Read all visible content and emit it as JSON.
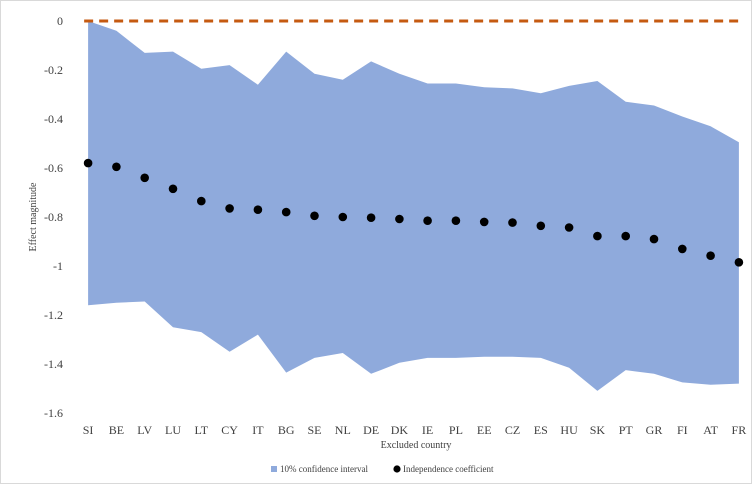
{
  "chart_data": {
    "type": "area",
    "xlabel": "Excluded country",
    "ylabel": "Effect magnitude",
    "ylim": [
      -1.6,
      0
    ],
    "yticks": [
      0,
      -0.2,
      -0.4,
      -0.6,
      -0.8,
      -1,
      -1.2,
      -1.4,
      -1.6
    ],
    "ytick_labels": [
      "0",
      "-0.2",
      "-0.4",
      "-0.6",
      "-0.8",
      "-1",
      "-1.2",
      "-1.4",
      "-1.6"
    ],
    "categories": [
      "SI",
      "BE",
      "LV",
      "LU",
      "LT",
      "CY",
      "IT",
      "BG",
      "SE",
      "NL",
      "DE",
      "DK",
      "IE",
      "PL",
      "EE",
      "CZ",
      "ES",
      "HU",
      "SK",
      "PT",
      "GR",
      "FI",
      "AT",
      "FR"
    ],
    "series": [
      {
        "name": "10% confidence interval",
        "kind": "band",
        "color": "#8faadc",
        "upper": [
          0.0,
          -0.04,
          -0.13,
          -0.125,
          -0.195,
          -0.18,
          -0.26,
          -0.125,
          -0.215,
          -0.24,
          -0.165,
          -0.215,
          -0.255,
          -0.255,
          -0.27,
          -0.275,
          -0.295,
          -0.265,
          -0.245,
          -0.33,
          -0.345,
          -0.39,
          -0.43,
          -0.495
        ],
        "lower": [
          -1.16,
          -1.15,
          -1.145,
          -1.25,
          -1.27,
          -1.35,
          -1.28,
          -1.435,
          -1.375,
          -1.355,
          -1.44,
          -1.395,
          -1.375,
          -1.375,
          -1.37,
          -1.37,
          -1.375,
          -1.415,
          -1.51,
          -1.425,
          -1.44,
          -1.475,
          -1.485,
          -1.48
        ]
      },
      {
        "name": "Independence coefficient",
        "kind": "scatter",
        "color": "#000000",
        "values": [
          -0.58,
          -0.595,
          -0.64,
          -0.685,
          -0.735,
          -0.765,
          -0.77,
          -0.78,
          -0.795,
          -0.8,
          -0.803,
          -0.808,
          -0.815,
          -0.815,
          -0.82,
          -0.823,
          -0.836,
          -0.843,
          -0.878,
          -0.878,
          -0.89,
          -0.93,
          -0.958,
          -0.985
        ]
      }
    ],
    "reference_line": {
      "value": 0,
      "color": "#c55a11",
      "style": "dashed"
    },
    "grid": false,
    "legend_position": "bottom"
  }
}
